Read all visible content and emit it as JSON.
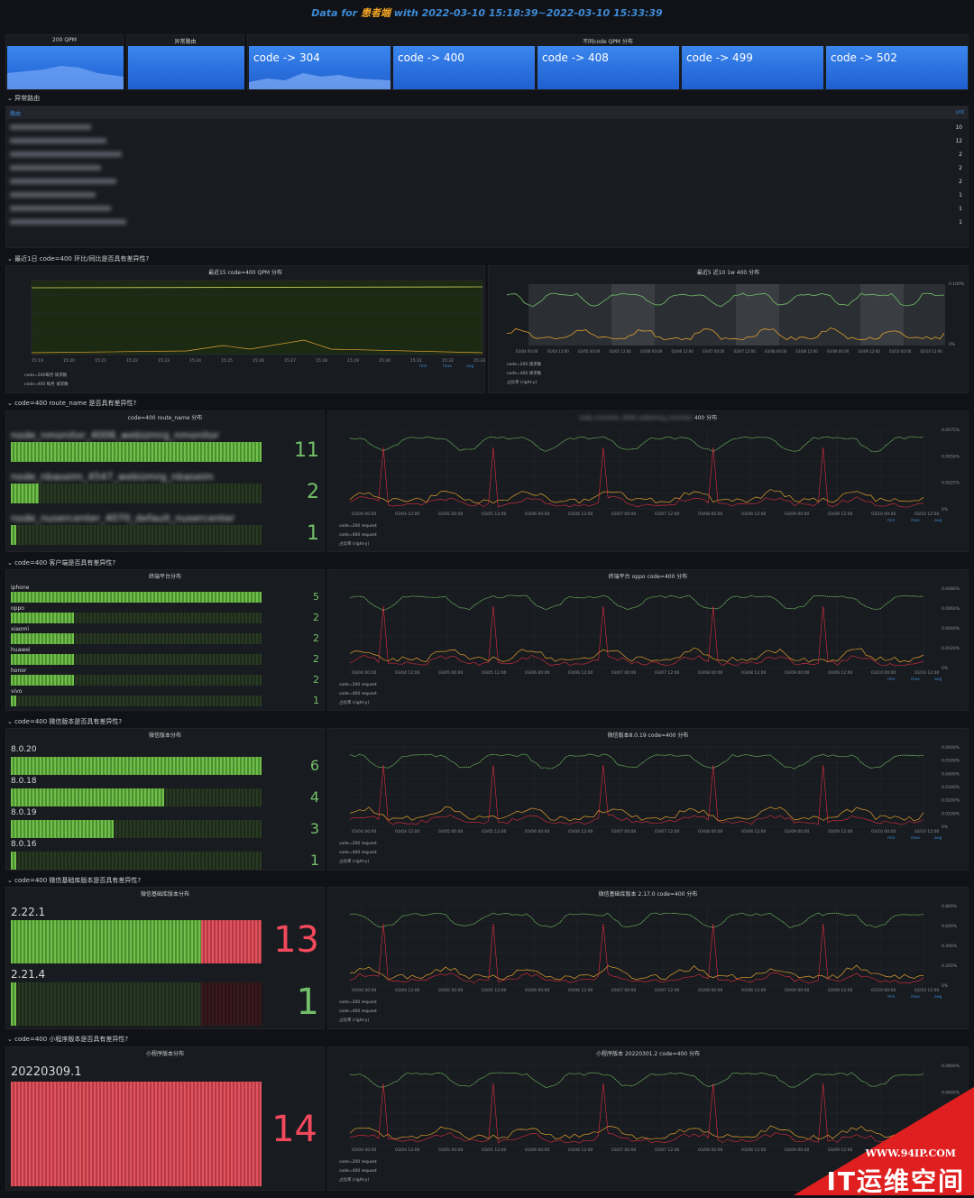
{
  "header": {
    "prefix": "Data for ",
    "app": "患者端",
    "mid": " with ",
    "range": "2022-03-10 15:18:39~2022-03-10 15:33:39"
  },
  "stats": {
    "qpm_title": "200 QPM",
    "err_title": "异常路由",
    "dist_title": "不同code QPM 分布",
    "codes": [
      "code -> 304",
      "code -> 400",
      "code -> 408",
      "code -> 499",
      "code -> 502"
    ]
  },
  "sections": {
    "s1": "异常路由",
    "s2": "最近1日 code=400 环比/同比是否具有差异性?",
    "s3": "code=400 route_name 是否具有差异性?",
    "s4": "code=400 客户端是否具有差异性?",
    "s5": "code=400 微信版本是否具有差异性?",
    "s6": "code=400 微信基础库版本是否具有差异性?",
    "s7": "code=400 小程序版本是否具有差异性?"
  },
  "table": {
    "col1": "路由",
    "col2": "cnt",
    "values": [
      "10",
      "12",
      "2",
      "2",
      "2",
      "1",
      "1",
      "1"
    ]
  },
  "p2a": {
    "title": "最近15 code=400 QPM 分布",
    "xticks": [
      "15:19",
      "15:20",
      "15:21",
      "15:22",
      "15:23",
      "15:24",
      "15:25",
      "15:26",
      "15:27",
      "15:28",
      "15:29",
      "15:30",
      "15:31",
      "15:32",
      "15:33"
    ],
    "legend": [
      "code=200每月 请求数",
      "code=400 每月 请求数"
    ],
    "hdr": [
      "min",
      "max",
      "avg"
    ]
  },
  "p2b": {
    "title": "最近5 近10 1w 400 分布",
    "xticks": [
      "03/04 00:00",
      "03/04 12:00",
      "03/05 00:00",
      "03/05 12:00",
      "03/06 00:00",
      "03/06 12:00",
      "03/07 00:00",
      "03/07 12:00",
      "03/08 00:00",
      "03/08 12:00",
      "03/09 00:00",
      "03/09 12:00",
      "03/10 00:00",
      "03/10 12:00"
    ],
    "yticks": [
      "0.100%",
      "0%"
    ],
    "legend": [
      "code=200 请求数",
      "code=400 请求数",
      "占比率 (right-y)"
    ]
  },
  "route": {
    "title": "code=400 route_name 分布",
    "items": [
      {
        "label": "node_nmonitor_4006_webizmrg_nmonitor",
        "value": "11",
        "frac": 1.0
      },
      {
        "label": "node_nbaseim_4547_webizmrg_nbaseim",
        "value": "2",
        "frac": 0.11
      },
      {
        "label": "node_nusercenter_4070_default_nusercenter",
        "value": "1",
        "frac": 0.02
      }
    ],
    "ts_title": "400 分布",
    "ts_yticks": [
      "0.0075%",
      "0.0050%",
      "0.0025%",
      "0%"
    ],
    "legend": [
      "code=200 request",
      "code=400 request",
      "占比率 (right-y)"
    ],
    "hdr": [
      "min",
      "max",
      "avg"
    ]
  },
  "client": {
    "title": "终端平台分布",
    "items": [
      {
        "label": "iphone",
        "value": "5",
        "frac": 1.0
      },
      {
        "label": "oppo",
        "value": "2",
        "frac": 0.25
      },
      {
        "label": "xiaomi",
        "value": "2",
        "frac": 0.25
      },
      {
        "label": "huawei",
        "value": "2",
        "frac": 0.25
      },
      {
        "label": "honor",
        "value": "2",
        "frac": 0.25
      },
      {
        "label": "vivo",
        "value": "1",
        "frac": 0.02
      }
    ],
    "ts_title": "终端平台 oppo code=400 分布",
    "ts_yticks": [
      "0.0080%",
      "0.0060%",
      "0.0040%",
      "0.0020%",
      "0%"
    ]
  },
  "wechat": {
    "title": "微信版本分布",
    "items": [
      {
        "label": "8.0.20",
        "value": "6",
        "frac": 1.0
      },
      {
        "label": "8.0.18",
        "value": "4",
        "frac": 0.61
      },
      {
        "label": "8.0.19",
        "value": "3",
        "frac": 0.41
      },
      {
        "label": "8.0.16",
        "value": "1",
        "frac": 0.02
      }
    ],
    "ts_title": "微信版本8.0.19 code=400 分布",
    "ts_yticks": [
      "0.0600%",
      "0.0500%",
      "0.0400%",
      "0.0300%",
      "0.0200%",
      "0.0100%",
      "0%"
    ]
  },
  "sdk": {
    "title": "微信基础库版本分布",
    "items": [
      {
        "label": "2.22.1",
        "value": "13",
        "green": 0.76,
        "red": 0.24,
        "valcolor": "#f2495c"
      },
      {
        "label": "2.21.4",
        "value": "1",
        "green": 0.02,
        "red": 0,
        "valcolor": "#73bf69"
      }
    ],
    "ts_title": "微信基础库版本 2.17.0 code=400 分布",
    "ts_yticks": [
      "0.800%",
      "0.600%",
      "0.400%",
      "0.200%",
      "0%"
    ]
  },
  "mini": {
    "title": "小程序版本分布",
    "items": [
      {
        "label": "20220309.1",
        "value": "14"
      }
    ],
    "ts_title": "小程序版本 20220301.2 code=400 分布",
    "ts_yticks": [
      "0.0800%",
      "0.0600%",
      "0.0400%",
      "0.0200%"
    ]
  },
  "ts_xticks": [
    "03/04 00:00",
    "03/04 12:00",
    "03/05 00:00",
    "03/05 12:00",
    "03/06 00:00",
    "03/06 12:00",
    "03/07 00:00",
    "03/07 12:00",
    "03/08 00:00",
    "03/08 12:00",
    "03/09 00:00",
    "03/09 12:00",
    "03/10 00:00",
    "03/10 12:00"
  ],
  "watermark": {
    "url": "WWW.94IP.COM",
    "brand": "IT运维空间"
  }
}
